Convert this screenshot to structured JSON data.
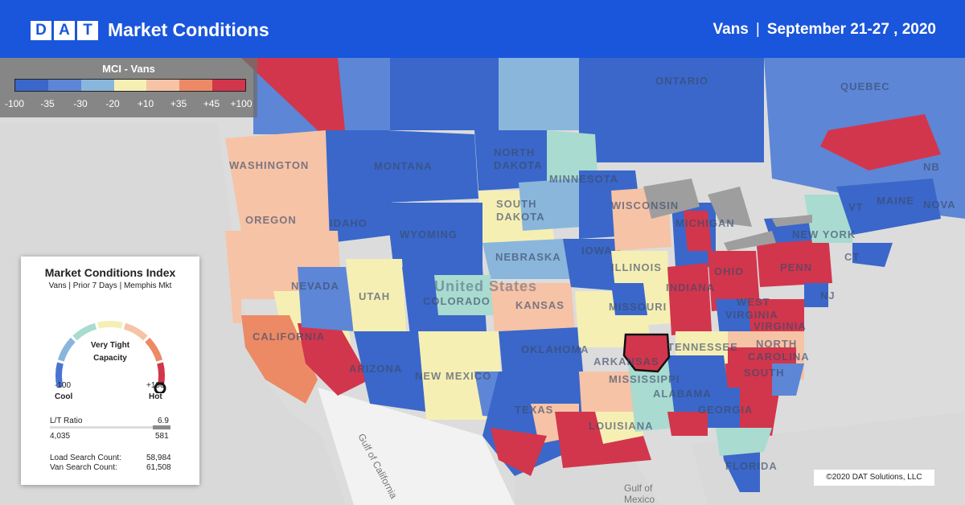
{
  "header": {
    "logo_letters": [
      "D",
      "A",
      "T"
    ],
    "title": "Market Conditions",
    "equipment": "Vans",
    "separator": "|",
    "date_range": "September 21-27 , 2020"
  },
  "legend": {
    "title": "MCI - Vans",
    "colors": [
      "#3a67c9",
      "#5d86d6",
      "#8ab6dc",
      "#f6efb4",
      "#f6c3a6",
      "#ec8a65",
      "#d2364c"
    ],
    "ticks": [
      "-100",
      "-35",
      "-30",
      "-20",
      "+10",
      "+35",
      "+45",
      "+100"
    ]
  },
  "map": {
    "labels": [
      "ONTARIO",
      "QUEBEC",
      "NB",
      "NOVA",
      "MAINE",
      "VT",
      "NEW YORK",
      "CT",
      "NJ",
      "PENN",
      "WASHINGTON",
      "OREGON",
      "IDAHO",
      "MONTANA",
      "WYOMING",
      "NORTH",
      "DAKOTA",
      "SOUTH",
      "DAKOTA",
      "MINNESOTA",
      "WISCONSIN",
      "MICHIGAN",
      "IOWA",
      "NEBRASKA",
      "ILLINOIS",
      "INDIANA",
      "OHIO",
      "WEST",
      "VIRGINIA",
      "VIRGINIA",
      "NEVADA",
      "UTAH",
      "COLORADO",
      "KANSAS",
      "MISSOURI",
      "CALIFORNIA",
      "ARIZONA",
      "NEW MEXICO",
      "OKLAHOMA",
      "TEXAS",
      "ARKANSAS",
      "MISSISSIPPI",
      "ALABAMA",
      "GEORGIA",
      "TENNESSEE",
      "NORTH",
      "CAROLINA",
      "SOUTH",
      "LOUISIANA",
      "FLORIDA"
    ],
    "country_label": "United States",
    "water_labels": [
      "Gulf of",
      "Mexico",
      "Gulf of California"
    ],
    "highlight_market": "Memphis",
    "copyright": "©2020 DAT Solutions, LLC"
  },
  "card": {
    "title": "Market Conditions Index",
    "subtitle": "Vans | Prior 7 Days | Memphis Mkt",
    "gauge_colors": [
      "#4a74cf",
      "#8ab6dc",
      "#a9dbd0",
      "#f6efb4",
      "#f6c3a6",
      "#ec8a65",
      "#d2364c"
    ],
    "gauge_value": 100,
    "gauge_line1": "Very Tight",
    "gauge_line2": "Capacity",
    "min_value": "-100",
    "min_label": "Cool",
    "max_value": "+100",
    "max_label": "Hot",
    "lt_label": "L/T Ratio",
    "lt_value": "6.9",
    "loads": "4,035",
    "trucks": "581",
    "load_search_label": "Load Search Count:",
    "load_search_value": "58,984",
    "van_search_label": "Van Search Count:",
    "van_search_value": "61,508"
  }
}
